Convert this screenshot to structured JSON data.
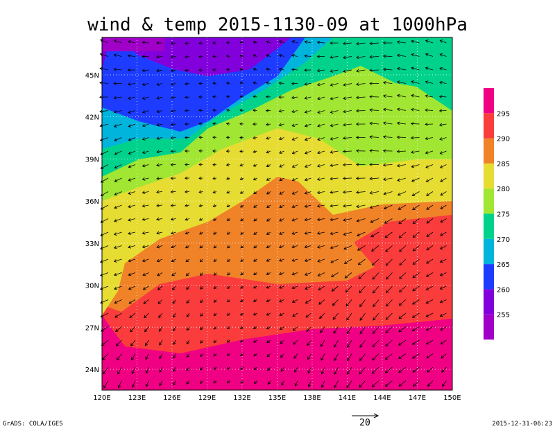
{
  "title": "wind & temp 2015-1130-09 at 1000hPa",
  "x_ticks": [
    {
      "value": 120,
      "label": "120E"
    },
    {
      "value": 123,
      "label": "123E"
    },
    {
      "value": 126,
      "label": "126E"
    },
    {
      "value": 129,
      "label": "129E"
    },
    {
      "value": 132,
      "label": "132E"
    },
    {
      "value": 135,
      "label": "135E"
    },
    {
      "value": 138,
      "label": "138E"
    },
    {
      "value": 141,
      "label": "141E"
    },
    {
      "value": 144,
      "label": "144E"
    },
    {
      "value": 147,
      "label": "147E"
    },
    {
      "value": 150,
      "label": "150E"
    }
  ],
  "y_ticks": [
    {
      "value": 45,
      "label": "45N"
    },
    {
      "value": 42,
      "label": "42N"
    },
    {
      "value": 39,
      "label": "39N"
    },
    {
      "value": 36,
      "label": "36N"
    },
    {
      "value": 33,
      "label": "33N"
    },
    {
      "value": 30,
      "label": "30N"
    },
    {
      "value": 27,
      "label": "27N"
    },
    {
      "value": 24,
      "label": "24N"
    }
  ],
  "colorbar": {
    "levels": [
      255,
      260,
      265,
      270,
      275,
      280,
      285,
      290,
      295
    ],
    "colors": [
      "#a000c8",
      "#8200dc",
      "#1e3cff",
      "#00b4dc",
      "#00d28c",
      "#a0e632",
      "#e6dc32",
      "#f08228",
      "#fa3c3c",
      "#f00082"
    ]
  },
  "vector_scale_label": "20",
  "footer_left": "GrADS: COLA/IGES",
  "footer_right": "2015-12-31-06:23"
}
